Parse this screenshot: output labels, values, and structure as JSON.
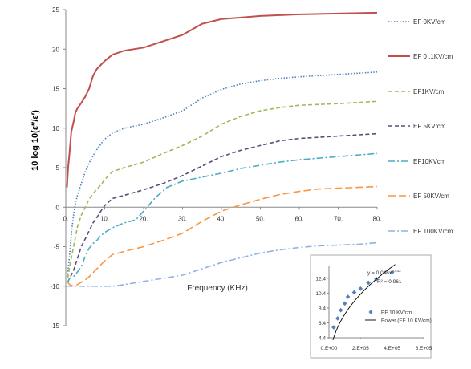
{
  "chart_data": [
    {
      "type": "line",
      "title": "",
      "xlabel": "Frequency (KHz)",
      "ylabel": "10 log 10(ε″/ε′)",
      "xlim": [
        0,
        80
      ],
      "ylim": [
        -15,
        25
      ],
      "x_ticks": [
        "0.",
        "10.",
        "20.",
        "30.",
        "40.",
        "50.",
        "60.",
        "70.",
        "80."
      ],
      "y_ticks": [
        "25",
        "20",
        "15",
        "10",
        "5",
        "0",
        "-5",
        "-10",
        "-15"
      ],
      "grid": false,
      "legend_position": "right",
      "series": [
        {
          "name": "EF 0KV/cm",
          "color": "#4f81bd",
          "dash": "dotted",
          "points": [
            [
              0.5,
              -8.5
            ],
            [
              1,
              -6
            ],
            [
              1.5,
              -3
            ],
            [
              2,
              -1
            ],
            [
              2.5,
              0.5
            ],
            [
              3,
              1.5
            ],
            [
              4,
              3
            ],
            [
              5,
              4.5
            ],
            [
              6,
              5.6
            ],
            [
              7,
              6.5
            ],
            [
              8,
              7.3
            ],
            [
              9,
              8
            ],
            [
              10,
              8.6
            ],
            [
              12,
              9.4
            ],
            [
              15,
              10
            ],
            [
              20,
              10.5
            ],
            [
              25,
              11.3
            ],
            [
              30,
              12.2
            ],
            [
              35,
              13.8
            ],
            [
              40,
              14.9
            ],
            [
              45,
              15.6
            ],
            [
              50,
              16
            ],
            [
              55,
              16.3
            ],
            [
              60,
              16.5
            ],
            [
              70,
              16.8
            ],
            [
              80,
              17.1
            ]
          ]
        },
        {
          "name": "EF 0 .1KV/cm",
          "color": "#c0504d",
          "dash": "solid",
          "points": [
            [
              0.3,
              2.5
            ],
            [
              0.6,
              5
            ],
            [
              1,
              7
            ],
            [
              1.4,
              9.5
            ],
            [
              2,
              10.8
            ],
            [
              2.5,
              12
            ],
            [
              3,
              12.5
            ],
            [
              4,
              13.2
            ],
            [
              5,
              14
            ],
            [
              6,
              15
            ],
            [
              7,
              16.6
            ],
            [
              8,
              17.5
            ],
            [
              10,
              18.5
            ],
            [
              12,
              19.3
            ],
            [
              15,
              19.8
            ],
            [
              20,
              20.2
            ],
            [
              25,
              21
            ],
            [
              30,
              21.8
            ],
            [
              35,
              23.2
            ],
            [
              40,
              23.8
            ],
            [
              45,
              24
            ],
            [
              50,
              24.2
            ],
            [
              60,
              24.4
            ],
            [
              70,
              24.5
            ],
            [
              80,
              24.6
            ]
          ]
        },
        {
          "name": "EF1KV/cm",
          "color": "#9bbb59",
          "dash": "dashed",
          "points": [
            [
              0.5,
              -9
            ],
            [
              1,
              -7.5
            ],
            [
              2,
              -5
            ],
            [
              3,
              -2.5
            ],
            [
              4,
              -1
            ],
            [
              5,
              0
            ],
            [
              6,
              1
            ],
            [
              7,
              1.7
            ],
            [
              8,
              2.3
            ],
            [
              9,
              2.8
            ],
            [
              10,
              3.5
            ],
            [
              12,
              4.5
            ],
            [
              15,
              5
            ],
            [
              20,
              5.7
            ],
            [
              25,
              6.8
            ],
            [
              30,
              7.8
            ],
            [
              35,
              9
            ],
            [
              40,
              10.5
            ],
            [
              45,
              11.5
            ],
            [
              50,
              12.2
            ],
            [
              55,
              12.6
            ],
            [
              60,
              12.9
            ],
            [
              70,
              13.1
            ],
            [
              80,
              13.4
            ]
          ]
        },
        {
          "name": "EF 5KV/cm",
          "color": "#604a7b",
          "dash": "dashed",
          "points": [
            [
              0.5,
              -9.5
            ],
            [
              1,
              -9
            ],
            [
              2,
              -8
            ],
            [
              3,
              -6.5
            ],
            [
              4,
              -5
            ],
            [
              5,
              -4
            ],
            [
              6,
              -3
            ],
            [
              7,
              -2
            ],
            [
              8,
              -1.3
            ],
            [
              9,
              -0.5
            ],
            [
              10,
              0.2
            ],
            [
              12,
              1.1
            ],
            [
              15,
              1.5
            ],
            [
              20,
              2.2
            ],
            [
              25,
              3
            ],
            [
              30,
              4
            ],
            [
              35,
              5.2
            ],
            [
              40,
              6.4
            ],
            [
              45,
              7.2
            ],
            [
              50,
              7.8
            ],
            [
              55,
              8.4
            ],
            [
              60,
              8.7
            ],
            [
              70,
              9
            ],
            [
              80,
              9.3
            ]
          ]
        },
        {
          "name": "EF10KVcm",
          "color": "#4bacc6",
          "dash": "dashdot",
          "points": [
            [
              0.5,
              -9.5
            ],
            [
              1,
              -9
            ],
            [
              2,
              -8.8
            ],
            [
              3,
              -8.2
            ],
            [
              4,
              -7.5
            ],
            [
              5,
              -6.2
            ],
            [
              6,
              -5.2
            ],
            [
              7,
              -4.6
            ],
            [
              8,
              -4.2
            ],
            [
              9,
              -3.6
            ],
            [
              10,
              -3.2
            ],
            [
              12,
              -2.6
            ],
            [
              15,
              -2
            ],
            [
              18,
              -1.6
            ],
            [
              20,
              -0.5
            ],
            [
              23,
              1.2
            ],
            [
              26,
              2.5
            ],
            [
              30,
              3.3
            ],
            [
              35,
              3.8
            ],
            [
              40,
              4.3
            ],
            [
              45,
              4.9
            ],
            [
              50,
              5.3
            ],
            [
              55,
              5.7
            ],
            [
              60,
              6
            ],
            [
              70,
              6.4
            ],
            [
              80,
              6.8
            ]
          ]
        },
        {
          "name": "EF 50KV/cm",
          "color": "#f79646",
          "dash": "longdash",
          "points": [
            [
              0.5,
              -9.5
            ],
            [
              1,
              -9.8
            ],
            [
              2,
              -10
            ],
            [
              3,
              -9.8
            ],
            [
              4,
              -9.5
            ],
            [
              5,
              -9.2
            ],
            [
              6,
              -8.8
            ],
            [
              8,
              -7.8
            ],
            [
              10,
              -6.8
            ],
            [
              12,
              -6
            ],
            [
              15,
              -5.6
            ],
            [
              20,
              -5
            ],
            [
              25,
              -4.2
            ],
            [
              30,
              -3.3
            ],
            [
              35,
              -1.8
            ],
            [
              40,
              -0.5
            ],
            [
              45,
              0.3
            ],
            [
              50,
              1
            ],
            [
              55,
              1.6
            ],
            [
              60,
              2
            ],
            [
              65,
              2.3
            ],
            [
              70,
              2.4
            ],
            [
              75,
              2.5
            ],
            [
              80,
              2.6
            ]
          ]
        },
        {
          "name": "EF 100KV/cm",
          "color": "#8eb4e3",
          "dash": "dashdot",
          "points": [
            [
              0,
              -10
            ],
            [
              3,
              -10
            ],
            [
              6,
              -10
            ],
            [
              9,
              -10
            ],
            [
              12,
              -10
            ],
            [
              15,
              -9.8
            ],
            [
              20,
              -9.4
            ],
            [
              25,
              -9
            ],
            [
              30,
              -8.6
            ],
            [
              35,
              -7.8
            ],
            [
              40,
              -7
            ],
            [
              45,
              -6.4
            ],
            [
              50,
              -5.8
            ],
            [
              55,
              -5.4
            ],
            [
              60,
              -5.1
            ],
            [
              65,
              -4.9
            ],
            [
              70,
              -4.8
            ],
            [
              75,
              -4.7
            ],
            [
              80,
              -4.5
            ]
          ]
        }
      ]
    },
    {
      "type": "scatter",
      "title": "",
      "xlabel": "",
      "ylabel": "",
      "xlim": [
        0,
        600000
      ],
      "ylim": [
        4.4,
        14
      ],
      "x_ticks": [
        "0.E+00",
        "2.E+05",
        "4.E+05",
        "6.E+05"
      ],
      "y_ticks": [
        "12.4",
        "10.4",
        "8.4",
        "6.4",
        "4.4"
      ],
      "equation": "y = 0.046x",
      "exponent": "0.443",
      "r2": "R² = 0.961",
      "legend_position": "bottom",
      "series": [
        {
          "name": "EF 10 KV/cm",
          "color": "#4f81bd",
          "marker": "diamond",
          "points": [
            [
              30000,
              5.8
            ],
            [
              55000,
              7
            ],
            [
              75000,
              8.1
            ],
            [
              100000,
              9
            ],
            [
              120000,
              9.9
            ],
            [
              160000,
              10.5
            ],
            [
              200000,
              11
            ],
            [
              250000,
              11.8
            ],
            [
              300000,
              12.3
            ],
            [
              400000,
              13.2
            ]
          ]
        },
        {
          "name": "Power (EF 10 KV/cm)",
          "color": "#000000",
          "kind": "fit",
          "coef": 0.046,
          "power": 0.443,
          "domain": [
            25000,
            420000
          ]
        }
      ]
    }
  ]
}
